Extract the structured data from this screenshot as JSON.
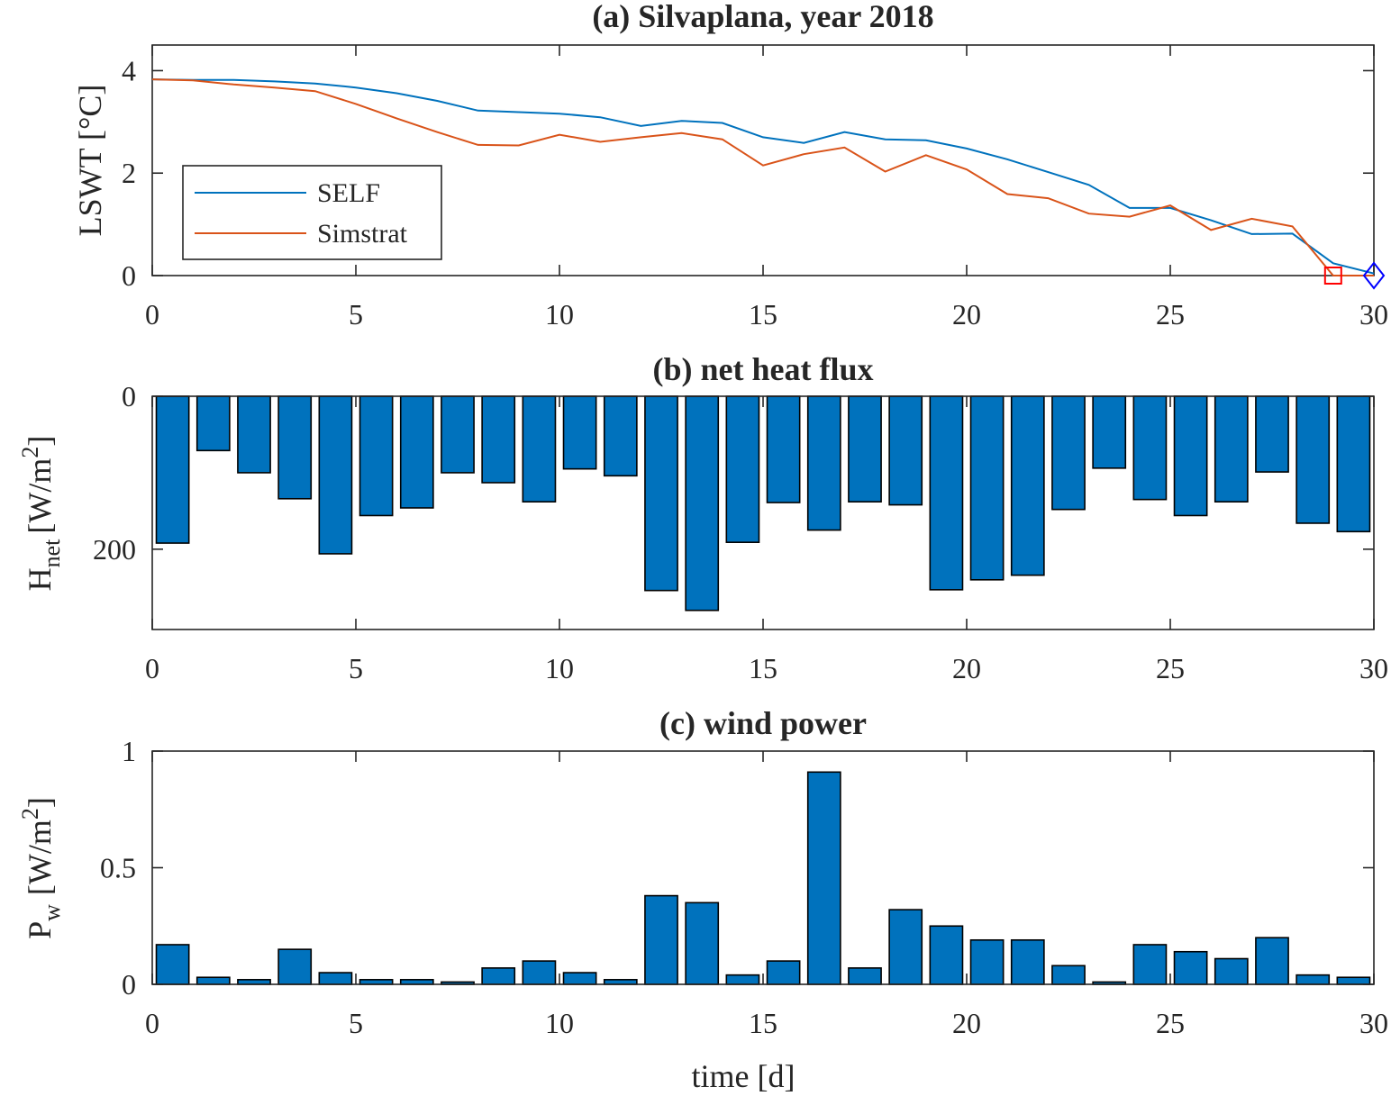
{
  "chart_data": [
    {
      "type": "line",
      "title": "(a) Silvaplana, year 2018",
      "xlabel": "",
      "ylabel": "LSWT [°C]",
      "xlim": [
        0,
        30
      ],
      "ylim": [
        0,
        4.5
      ],
      "xticks": [
        0,
        5,
        10,
        15,
        20,
        25,
        30
      ],
      "yticks": [
        0,
        2,
        4
      ],
      "legend": {
        "placement": "middle-left",
        "entries": [
          "SELF",
          "Simstrat"
        ]
      },
      "series": [
        {
          "name": "SELF",
          "color": "#0072BD",
          "x": [
            0,
            1,
            2,
            3,
            4,
            5,
            6,
            7,
            8,
            9,
            10,
            11,
            12,
            13,
            14,
            15,
            16,
            17,
            18,
            19,
            20,
            21,
            22,
            23,
            24,
            25,
            26,
            27,
            28,
            29,
            30
          ],
          "y": [
            3.83,
            3.82,
            3.82,
            3.79,
            3.75,
            3.67,
            3.56,
            3.41,
            3.22,
            3.19,
            3.16,
            3.09,
            2.92,
            3.02,
            2.98,
            2.7,
            2.59,
            2.8,
            2.66,
            2.64,
            2.48,
            2.27,
            2.02,
            1.77,
            1.32,
            1.32,
            1.08,
            0.81,
            0.82,
            0.24,
            0.04
          ]
        },
        {
          "name": "Simstrat",
          "color": "#D95319",
          "x": [
            0,
            1,
            2,
            3,
            4,
            5,
            6,
            7,
            8,
            9,
            10,
            11,
            12,
            13,
            14,
            15,
            16,
            17,
            18,
            19,
            20,
            21,
            22,
            23,
            24,
            25,
            26,
            27,
            28,
            29,
            30
          ],
          "y": [
            3.83,
            3.81,
            3.73,
            3.67,
            3.6,
            3.35,
            3.07,
            2.8,
            2.55,
            2.54,
            2.75,
            2.61,
            2.7,
            2.78,
            2.66,
            2.15,
            2.37,
            2.5,
            2.03,
            2.35,
            2.07,
            1.59,
            1.51,
            1.21,
            1.15,
            1.37,
            0.89,
            1.11,
            0.96,
            0.0,
            0.0
          ]
        }
      ],
      "markers": [
        {
          "shape": "square",
          "color": "#FF0000",
          "x": 29,
          "y": 0
        },
        {
          "shape": "diamond",
          "color": "#0000FF",
          "x": 30,
          "y": 0
        }
      ]
    },
    {
      "type": "bar",
      "title": "(b) net heat flux",
      "xlabel": "",
      "ylabel": "H",
      "ylabel_sub": "net",
      "ylabel_unit": "[W/m",
      "ylabel_sup": "2",
      "ylabel_end": "]",
      "xlim": [
        0,
        30
      ],
      "ylim": [
        0,
        305
      ],
      "y_direction": "reversed",
      "xticks": [
        0,
        5,
        10,
        15,
        20,
        25,
        30
      ],
      "yticks": [
        0,
        200
      ],
      "color": "#0072BD",
      "x": [
        0.5,
        1.5,
        2.5,
        3.5,
        4.5,
        5.5,
        6.5,
        7.5,
        8.5,
        9.5,
        10.5,
        11.5,
        12.5,
        13.5,
        14.5,
        15.5,
        16.5,
        17.5,
        18.5,
        19.5,
        20.5,
        21.5,
        22.5,
        23.5,
        24.5,
        25.5,
        26.5,
        27.5,
        28.5,
        29.5
      ],
      "values": [
        192,
        71,
        100,
        134,
        206,
        156,
        146,
        100,
        113,
        138,
        95,
        104,
        254,
        280,
        191,
        139,
        175,
        138,
        142,
        253,
        240,
        234,
        148,
        94,
        135,
        156,
        138,
        99,
        166,
        177
      ]
    },
    {
      "type": "bar",
      "title": "(c) wind power",
      "xlabel": "time [d]",
      "ylabel": "P",
      "ylabel_sub": "w",
      "ylabel_unit": "[W/m",
      "ylabel_sup": "2",
      "ylabel_end": "]",
      "xlim": [
        0,
        30
      ],
      "ylim": [
        0,
        1
      ],
      "xticks": [
        0,
        5,
        10,
        15,
        20,
        25,
        30
      ],
      "yticks": [
        0,
        0.5,
        1
      ],
      "color": "#0072BD",
      "x": [
        0.5,
        1.5,
        2.5,
        3.5,
        4.5,
        5.5,
        6.5,
        7.5,
        8.5,
        9.5,
        10.5,
        11.5,
        12.5,
        13.5,
        14.5,
        15.5,
        16.5,
        17.5,
        18.5,
        19.5,
        20.5,
        21.5,
        22.5,
        23.5,
        24.5,
        25.5,
        26.5,
        27.5,
        28.5,
        29.5
      ],
      "values": [
        0.17,
        0.03,
        0.02,
        0.15,
        0.05,
        0.02,
        0.02,
        0.01,
        0.07,
        0.1,
        0.05,
        0.02,
        0.38,
        0.35,
        0.04,
        0.1,
        0.91,
        0.07,
        0.32,
        0.25,
        0.19,
        0.19,
        0.08,
        0.01,
        0.17,
        0.14,
        0.11,
        0.2,
        0.04,
        0.03
      ]
    }
  ]
}
